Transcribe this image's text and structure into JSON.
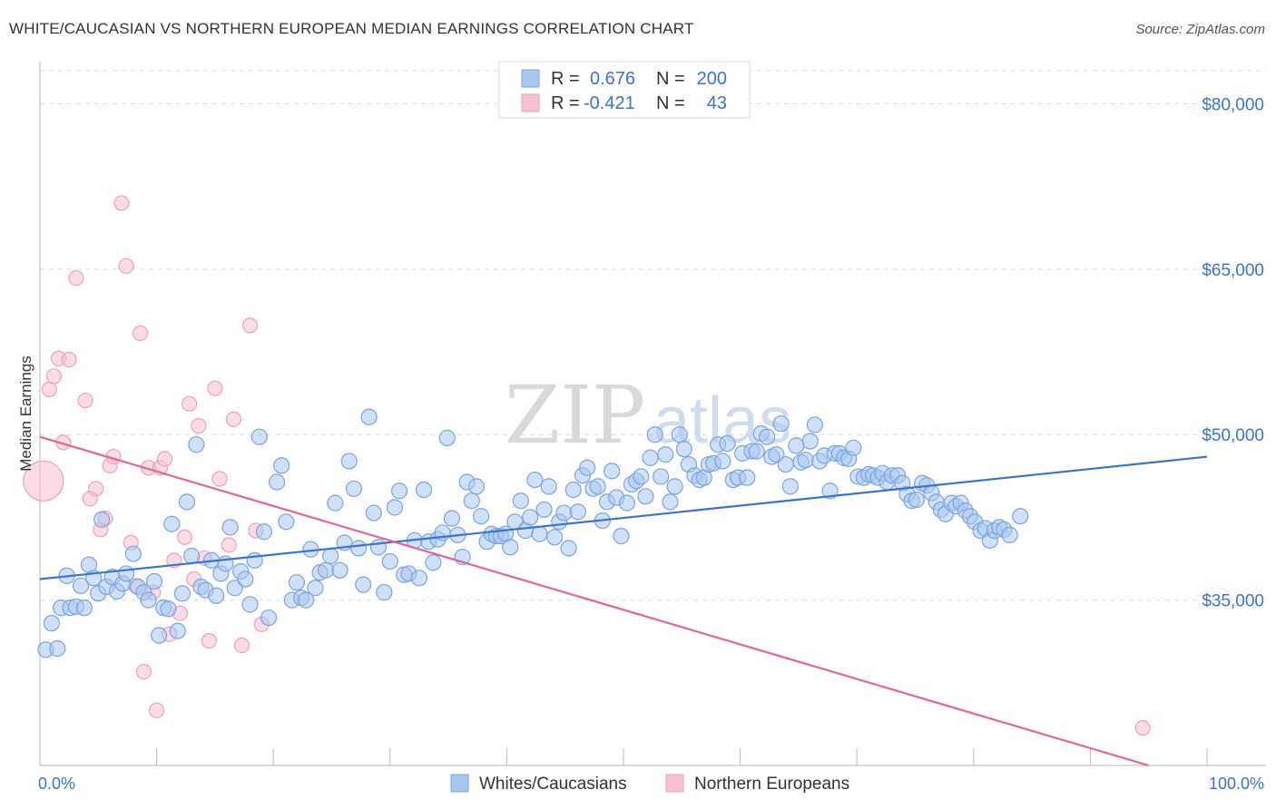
{
  "title": "WHITE/CAUCASIAN VS NORTHERN EUROPEAN MEDIAN EARNINGS CORRELATION CHART",
  "source": "Source: ZipAtlas.com",
  "watermark": {
    "zip": "ZIP",
    "atlas": "atlas"
  },
  "colors": {
    "blue": "#3b74c9",
    "blue_fill": "#a9c6ef",
    "blue_stroke": "#7aa5e0",
    "pink": "#e0669a",
    "pink_fill": "#f6bfd2",
    "pink_stroke": "#eda0bd",
    "grid": "#dddddd"
  },
  "legend": {
    "r_label": "R =",
    "n_label": "N =",
    "series": [
      {
        "r": "0.676",
        "n": "200"
      },
      {
        "r": "-0.421",
        "n": "43"
      }
    ]
  },
  "bottom_legend": [
    "Whites/Caucasians",
    "Northern Europeans"
  ],
  "chart_data": {
    "type": "scatter",
    "title": "WHITE/CAUCASIAN VS NORTHERN EUROPEAN MEDIAN EARNINGS CORRELATION CHART",
    "ylabel": "Median Earnings",
    "xlabel": "",
    "x_tick_labels": [
      "0.0%",
      "100.0%"
    ],
    "y_tick_labels": [
      "$80,000",
      "$65,000",
      "$50,000",
      "$35,000"
    ],
    "y_ticks": [
      80000,
      65000,
      50000,
      35000
    ],
    "xlim": [
      0,
      100
    ],
    "ylim": [
      20000,
      83000
    ],
    "grid": true,
    "legend_position": "top-center",
    "series": [
      {
        "name": "Whites/Caucasians",
        "r": 0.676,
        "n": 200,
        "trend": [
          [
            0,
            36900
          ],
          [
            100,
            48000
          ]
        ],
        "points": [
          [
            0.5,
            30500
          ],
          [
            1.0,
            32900
          ],
          [
            1.5,
            30600
          ],
          [
            1.8,
            34300
          ],
          [
            2.3,
            37200
          ],
          [
            2.6,
            34300
          ],
          [
            3.1,
            34400
          ],
          [
            3.5,
            36300
          ],
          [
            3.8,
            34300
          ],
          [
            4.2,
            38200
          ],
          [
            4.6,
            37000
          ],
          [
            5.0,
            35600
          ],
          [
            5.3,
            42300
          ],
          [
            5.7,
            36200
          ],
          [
            6.2,
            37100
          ],
          [
            6.6,
            35800
          ],
          [
            7.1,
            36500
          ],
          [
            7.4,
            37400
          ],
          [
            8.0,
            39200
          ],
          [
            8.4,
            36200
          ],
          [
            8.9,
            35700
          ],
          [
            9.3,
            35000
          ],
          [
            9.8,
            36700
          ],
          [
            10.2,
            31800
          ],
          [
            10.6,
            34300
          ],
          [
            11.0,
            34200
          ],
          [
            11.3,
            41900
          ],
          [
            11.8,
            32200
          ],
          [
            12.2,
            35600
          ],
          [
            12.6,
            43900
          ],
          [
            13.0,
            39000
          ],
          [
            13.4,
            49100
          ],
          [
            13.8,
            36200
          ],
          [
            14.2,
            35900
          ],
          [
            14.7,
            38600
          ],
          [
            15.1,
            35400
          ],
          [
            15.5,
            37400
          ],
          [
            15.9,
            38300
          ],
          [
            16.3,
            41600
          ],
          [
            16.7,
            36100
          ],
          [
            17.2,
            37600
          ],
          [
            17.6,
            36900
          ],
          [
            18.0,
            34600
          ],
          [
            18.4,
            38600
          ],
          [
            18.8,
            49800
          ],
          [
            19.2,
            41200
          ],
          [
            19.6,
            33400
          ],
          [
            20.3,
            45700
          ],
          [
            20.7,
            47200
          ],
          [
            21.1,
            42100
          ],
          [
            21.6,
            35000
          ],
          [
            22.0,
            36600
          ],
          [
            22.4,
            35200
          ],
          [
            22.8,
            35000
          ],
          [
            23.2,
            39600
          ],
          [
            23.6,
            36100
          ],
          [
            24.0,
            37500
          ],
          [
            24.5,
            37700
          ],
          [
            24.9,
            39000
          ],
          [
            25.3,
            43800
          ],
          [
            25.7,
            37700
          ],
          [
            26.1,
            40200
          ],
          [
            26.5,
            47600
          ],
          [
            26.9,
            45100
          ],
          [
            27.3,
            39700
          ],
          [
            27.7,
            36400
          ],
          [
            28.2,
            51600
          ],
          [
            28.6,
            42900
          ],
          [
            29.0,
            39800
          ],
          [
            29.5,
            35700
          ],
          [
            30.0,
            38500
          ],
          [
            30.4,
            43400
          ],
          [
            30.8,
            44900
          ],
          [
            31.2,
            37300
          ],
          [
            31.6,
            37400
          ],
          [
            32.1,
            40400
          ],
          [
            32.5,
            37000
          ],
          [
            32.9,
            45000
          ],
          [
            33.3,
            40300
          ],
          [
            33.7,
            38400
          ],
          [
            34.1,
            40500
          ],
          [
            34.5,
            41100
          ],
          [
            34.9,
            49700
          ],
          [
            35.3,
            42400
          ],
          [
            35.8,
            40900
          ],
          [
            36.2,
            38900
          ],
          [
            36.6,
            45700
          ],
          [
            37.0,
            44000
          ],
          [
            37.4,
            45300
          ],
          [
            37.8,
            42600
          ],
          [
            38.3,
            40300
          ],
          [
            38.7,
            41000
          ],
          [
            39.1,
            40800
          ],
          [
            39.5,
            40800
          ],
          [
            39.9,
            41000
          ],
          [
            40.3,
            39800
          ],
          [
            40.7,
            42100
          ],
          [
            41.2,
            44000
          ],
          [
            41.6,
            41300
          ],
          [
            42.0,
            42500
          ],
          [
            42.4,
            45900
          ],
          [
            42.8,
            41000
          ],
          [
            43.2,
            43200
          ],
          [
            43.6,
            45300
          ],
          [
            44.1,
            40700
          ],
          [
            44.5,
            42100
          ],
          [
            44.9,
            42900
          ],
          [
            45.3,
            39700
          ],
          [
            45.7,
            45000
          ],
          [
            46.1,
            43000
          ],
          [
            46.5,
            46300
          ],
          [
            46.9,
            47000
          ],
          [
            47.4,
            45100
          ],
          [
            47.8,
            45300
          ],
          [
            48.2,
            42200
          ],
          [
            48.6,
            43900
          ],
          [
            49.0,
            46700
          ],
          [
            49.4,
            44300
          ],
          [
            49.8,
            40800
          ],
          [
            50.3,
            43800
          ],
          [
            50.7,
            45500
          ],
          [
            51.1,
            45800
          ],
          [
            51.5,
            46200
          ],
          [
            51.9,
            44400
          ],
          [
            52.3,
            47900
          ],
          [
            52.7,
            50000
          ],
          [
            53.2,
            46200
          ],
          [
            53.6,
            48200
          ],
          [
            54.0,
            43900
          ],
          [
            54.4,
            45300
          ],
          [
            54.8,
            50000
          ],
          [
            55.2,
            48700
          ],
          [
            55.6,
            47300
          ],
          [
            56.1,
            46300
          ],
          [
            56.5,
            45900
          ],
          [
            56.9,
            46100
          ],
          [
            57.3,
            47300
          ],
          [
            57.7,
            47400
          ],
          [
            58.1,
            49100
          ],
          [
            58.5,
            47600
          ],
          [
            58.9,
            49200
          ],
          [
            59.4,
            45900
          ],
          [
            59.8,
            46100
          ],
          [
            60.2,
            48300
          ],
          [
            60.6,
            46100
          ],
          [
            61.0,
            48500
          ],
          [
            61.4,
            48500
          ],
          [
            61.8,
            50100
          ],
          [
            62.3,
            49800
          ],
          [
            62.7,
            48000
          ],
          [
            63.1,
            48200
          ],
          [
            63.5,
            51000
          ],
          [
            63.9,
            47300
          ],
          [
            64.3,
            45300
          ],
          [
            64.8,
            49000
          ],
          [
            65.2,
            47500
          ],
          [
            65.6,
            47700
          ],
          [
            66.0,
            49400
          ],
          [
            66.4,
            50900
          ],
          [
            66.8,
            47600
          ],
          [
            67.2,
            48100
          ],
          [
            67.7,
            44900
          ],
          [
            68.1,
            48300
          ],
          [
            68.5,
            48300
          ],
          [
            68.9,
            47900
          ],
          [
            69.3,
            47800
          ],
          [
            69.7,
            48800
          ],
          [
            70.1,
            46200
          ],
          [
            70.6,
            46100
          ],
          [
            71.0,
            46400
          ],
          [
            71.4,
            46300
          ],
          [
            71.8,
            46100
          ],
          [
            72.2,
            46500
          ],
          [
            72.6,
            45700
          ],
          [
            73.0,
            46300
          ],
          [
            73.5,
            46300
          ],
          [
            73.9,
            45600
          ],
          [
            74.3,
            44600
          ],
          [
            74.7,
            44000
          ],
          [
            75.1,
            44100
          ],
          [
            75.6,
            45600
          ],
          [
            76.0,
            45400
          ],
          [
            76.4,
            44700
          ],
          [
            76.8,
            43900
          ],
          [
            77.2,
            43200
          ],
          [
            77.6,
            42800
          ],
          [
            78.1,
            43800
          ],
          [
            78.5,
            43500
          ],
          [
            78.9,
            43800
          ],
          [
            79.3,
            43100
          ],
          [
            79.7,
            42600
          ],
          [
            80.1,
            42100
          ],
          [
            80.6,
            41300
          ],
          [
            81.0,
            41500
          ],
          [
            81.4,
            40400
          ],
          [
            81.8,
            41300
          ],
          [
            82.2,
            41600
          ],
          [
            82.6,
            41400
          ],
          [
            83.1,
            40900
          ],
          [
            84.0,
            42600
          ]
        ]
      },
      {
        "name": "Northern Europeans",
        "r": -0.421,
        "n": 43,
        "trend": [
          [
            0,
            49800
          ],
          [
            95,
            20000
          ]
        ],
        "points": [
          [
            0.3,
            45800
          ],
          [
            0.8,
            54100
          ],
          [
            1.2,
            55300
          ],
          [
            1.6,
            56900
          ],
          [
            2.0,
            49300
          ],
          [
            2.5,
            56800
          ],
          [
            3.1,
            64200
          ],
          [
            3.9,
            53100
          ],
          [
            4.3,
            44200
          ],
          [
            4.8,
            45100
          ],
          [
            5.2,
            41400
          ],
          [
            5.6,
            42400
          ],
          [
            6.0,
            47200
          ],
          [
            6.3,
            48000
          ],
          [
            7.0,
            71000
          ],
          [
            7.4,
            65300
          ],
          [
            7.8,
            40200
          ],
          [
            8.2,
            36300
          ],
          [
            8.6,
            59200
          ],
          [
            8.9,
            28500
          ],
          [
            9.3,
            47000
          ],
          [
            9.7,
            35700
          ],
          [
            10.0,
            25000
          ],
          [
            10.3,
            47000
          ],
          [
            10.7,
            47800
          ],
          [
            11.1,
            31900
          ],
          [
            11.5,
            38600
          ],
          [
            12.0,
            33800
          ],
          [
            12.4,
            40700
          ],
          [
            12.8,
            52800
          ],
          [
            13.2,
            36900
          ],
          [
            13.6,
            50800
          ],
          [
            14.1,
            38800
          ],
          [
            14.5,
            31300
          ],
          [
            15.0,
            54200
          ],
          [
            15.4,
            46000
          ],
          [
            16.2,
            40000
          ],
          [
            16.6,
            51400
          ],
          [
            17.3,
            30900
          ],
          [
            18.0,
            59900
          ],
          [
            18.5,
            41300
          ],
          [
            19.0,
            32800
          ],
          [
            94.5,
            23400
          ]
        ]
      }
    ]
  }
}
